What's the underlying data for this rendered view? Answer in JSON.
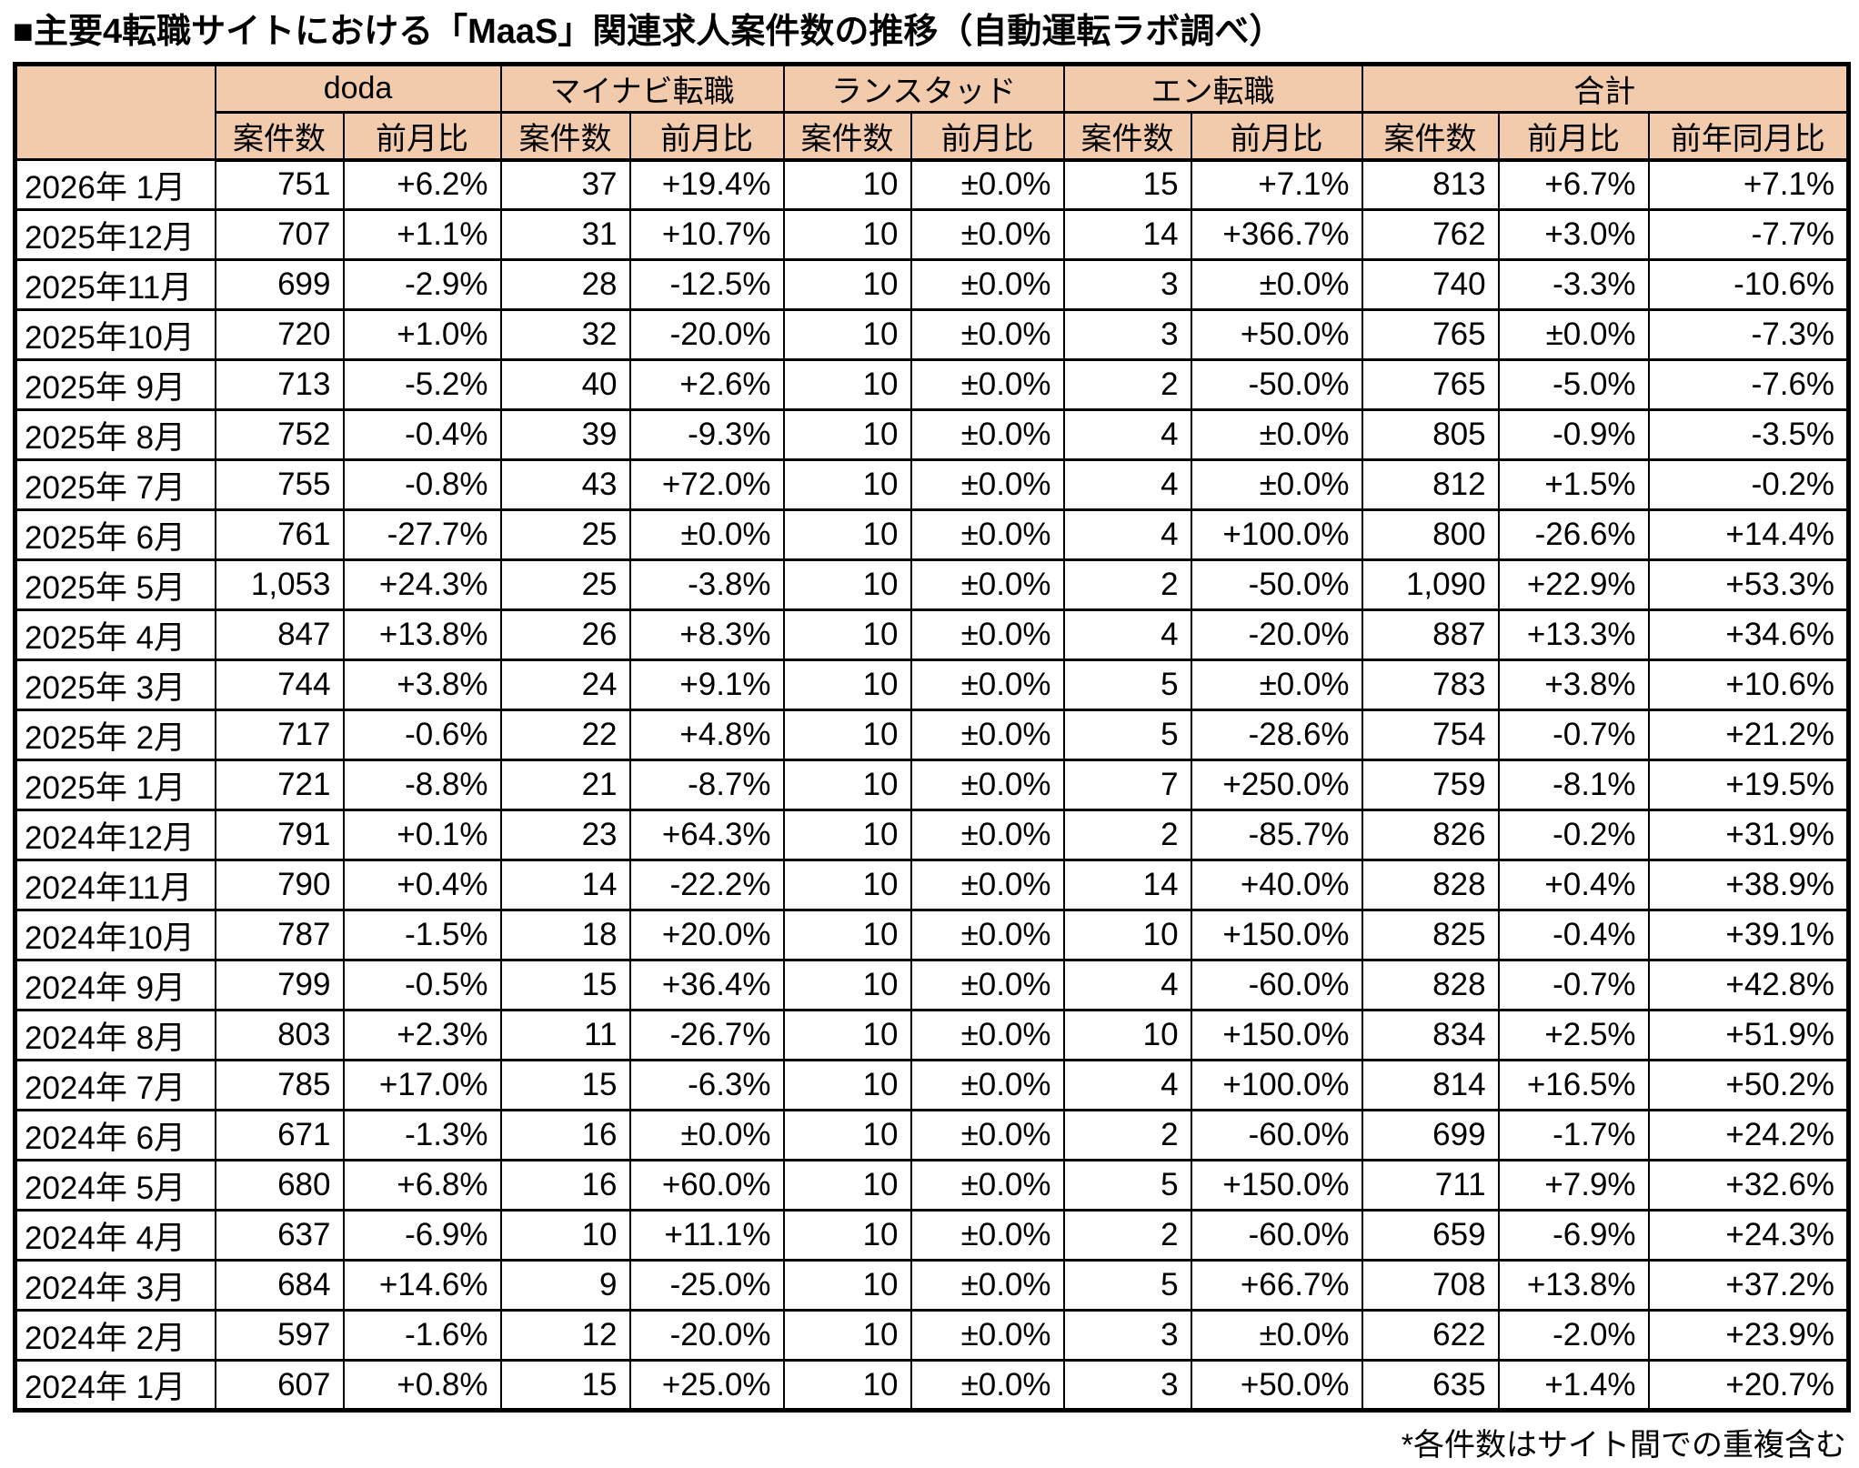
{
  "title": "■主要4転職サイトにおける「MaaS」関連求人案件数の推移（自動運転ラボ調べ）",
  "footnote": "*各件数はサイト間での重複含む",
  "colors": {
    "header_bg": "#F2CBAD",
    "border": "#000000",
    "text": "#000000"
  },
  "table": {
    "corner_label": "",
    "groups": [
      {
        "label": "doda",
        "colspan": 2
      },
      {
        "label": "マイナビ転職",
        "colspan": 2
      },
      {
        "label": "ランスタッド",
        "colspan": 2
      },
      {
        "label": "エン転職",
        "colspan": 2
      },
      {
        "label": "合計",
        "colspan": 3
      }
    ],
    "sub_headers": [
      "案件数",
      "前月比",
      "案件数",
      "前月比",
      "案件数",
      "前月比",
      "案件数",
      "前月比",
      "案件数",
      "前月比",
      "前年同月比"
    ]
  },
  "chart_data": {
    "type": "table",
    "title": "主要4転職サイトにおける「MaaS」関連求人案件数の推移（自動運転ラボ調べ）",
    "column_groups": [
      "doda",
      "マイナビ転職",
      "ランスタッド",
      "エン転職",
      "合計"
    ],
    "columns": [
      "月",
      "doda 案件数",
      "doda 前月比",
      "マイナビ転職 案件数",
      "マイナビ転職 前月比",
      "ランスタッド 案件数",
      "ランスタッド 前月比",
      "エン転職 案件数",
      "エン転職 前月比",
      "合計 案件数",
      "合計 前月比",
      "合計 前年同月比"
    ],
    "rows": [
      [
        "2026年 1月",
        "751",
        "+6.2%",
        "37",
        "+19.4%",
        "10",
        "±0.0%",
        "15",
        "+7.1%",
        "813",
        "+6.7%",
        "+7.1%"
      ],
      [
        "2025年12月",
        "707",
        "+1.1%",
        "31",
        "+10.7%",
        "10",
        "±0.0%",
        "14",
        "+366.7%",
        "762",
        "+3.0%",
        "-7.7%"
      ],
      [
        "2025年11月",
        "699",
        "-2.9%",
        "28",
        "-12.5%",
        "10",
        "±0.0%",
        "3",
        "±0.0%",
        "740",
        "-3.3%",
        "-10.6%"
      ],
      [
        "2025年10月",
        "720",
        "+1.0%",
        "32",
        "-20.0%",
        "10",
        "±0.0%",
        "3",
        "+50.0%",
        "765",
        "±0.0%",
        "-7.3%"
      ],
      [
        "2025年 9月",
        "713",
        "-5.2%",
        "40",
        "+2.6%",
        "10",
        "±0.0%",
        "2",
        "-50.0%",
        "765",
        "-5.0%",
        "-7.6%"
      ],
      [
        "2025年 8月",
        "752",
        "-0.4%",
        "39",
        "-9.3%",
        "10",
        "±0.0%",
        "4",
        "±0.0%",
        "805",
        "-0.9%",
        "-3.5%"
      ],
      [
        "2025年 7月",
        "755",
        "-0.8%",
        "43",
        "+72.0%",
        "10",
        "±0.0%",
        "4",
        "±0.0%",
        "812",
        "+1.5%",
        "-0.2%"
      ],
      [
        "2025年 6月",
        "761",
        "-27.7%",
        "25",
        "±0.0%",
        "10",
        "±0.0%",
        "4",
        "+100.0%",
        "800",
        "-26.6%",
        "+14.4%"
      ],
      [
        "2025年 5月",
        "1,053",
        "+24.3%",
        "25",
        "-3.8%",
        "10",
        "±0.0%",
        "2",
        "-50.0%",
        "1,090",
        "+22.9%",
        "+53.3%"
      ],
      [
        "2025年 4月",
        "847",
        "+13.8%",
        "26",
        "+8.3%",
        "10",
        "±0.0%",
        "4",
        "-20.0%",
        "887",
        "+13.3%",
        "+34.6%"
      ],
      [
        "2025年 3月",
        "744",
        "+3.8%",
        "24",
        "+9.1%",
        "10",
        "±0.0%",
        "5",
        "±0.0%",
        "783",
        "+3.8%",
        "+10.6%"
      ],
      [
        "2025年 2月",
        "717",
        "-0.6%",
        "22",
        "+4.8%",
        "10",
        "±0.0%",
        "5",
        "-28.6%",
        "754",
        "-0.7%",
        "+21.2%"
      ],
      [
        "2025年 1月",
        "721",
        "-8.8%",
        "21",
        "-8.7%",
        "10",
        "±0.0%",
        "7",
        "+250.0%",
        "759",
        "-8.1%",
        "+19.5%"
      ],
      [
        "2024年12月",
        "791",
        "+0.1%",
        "23",
        "+64.3%",
        "10",
        "±0.0%",
        "2",
        "-85.7%",
        "826",
        "-0.2%",
        "+31.9%"
      ],
      [
        "2024年11月",
        "790",
        "+0.4%",
        "14",
        "-22.2%",
        "10",
        "±0.0%",
        "14",
        "+40.0%",
        "828",
        "+0.4%",
        "+38.9%"
      ],
      [
        "2024年10月",
        "787",
        "-1.5%",
        "18",
        "+20.0%",
        "10",
        "±0.0%",
        "10",
        "+150.0%",
        "825",
        "-0.4%",
        "+39.1%"
      ],
      [
        "2024年 9月",
        "799",
        "-0.5%",
        "15",
        "+36.4%",
        "10",
        "±0.0%",
        "4",
        "-60.0%",
        "828",
        "-0.7%",
        "+42.8%"
      ],
      [
        "2024年 8月",
        "803",
        "+2.3%",
        "11",
        "-26.7%",
        "10",
        "±0.0%",
        "10",
        "+150.0%",
        "834",
        "+2.5%",
        "+51.9%"
      ],
      [
        "2024年 7月",
        "785",
        "+17.0%",
        "15",
        "-6.3%",
        "10",
        "±0.0%",
        "4",
        "+100.0%",
        "814",
        "+16.5%",
        "+50.2%"
      ],
      [
        "2024年 6月",
        "671",
        "-1.3%",
        "16",
        "±0.0%",
        "10",
        "±0.0%",
        "2",
        "-60.0%",
        "699",
        "-1.7%",
        "+24.2%"
      ],
      [
        "2024年 5月",
        "680",
        "+6.8%",
        "16",
        "+60.0%",
        "10",
        "±0.0%",
        "5",
        "+150.0%",
        "711",
        "+7.9%",
        "+32.6%"
      ],
      [
        "2024年 4月",
        "637",
        "-6.9%",
        "10",
        "+11.1%",
        "10",
        "±0.0%",
        "2",
        "-60.0%",
        "659",
        "-6.9%",
        "+24.3%"
      ],
      [
        "2024年 3月",
        "684",
        "+14.6%",
        "9",
        "-25.0%",
        "10",
        "±0.0%",
        "5",
        "+66.7%",
        "708",
        "+13.8%",
        "+37.2%"
      ],
      [
        "2024年 2月",
        "597",
        "-1.6%",
        "12",
        "-20.0%",
        "10",
        "±0.0%",
        "3",
        "±0.0%",
        "622",
        "-2.0%",
        "+23.9%"
      ],
      [
        "2024年 1月",
        "607",
        "+0.8%",
        "15",
        "+25.0%",
        "10",
        "±0.0%",
        "3",
        "+50.0%",
        "635",
        "+1.4%",
        "+20.7%"
      ]
    ]
  }
}
